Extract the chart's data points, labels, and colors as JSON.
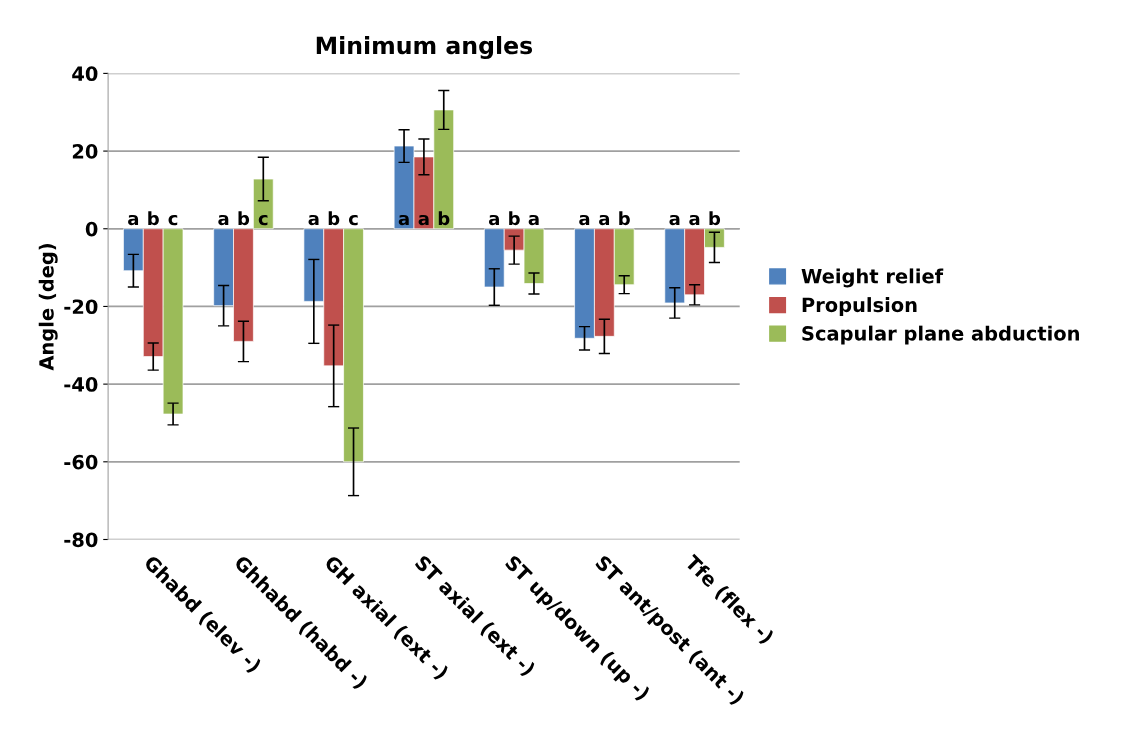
{
  "chart_data": {
    "type": "bar",
    "title": "Minimum angles",
    "ylabel": "Angle (deg)",
    "categories": [
      "Ghabd (elev -)",
      "Ghhabd (habd -)",
      "GH axial (ext -)",
      "ST axial (ext -)",
      "ST up/down (up -)",
      "ST ant/post (ant -)",
      "Tfe (flex -)"
    ],
    "series": [
      {
        "name": "Weight relief",
        "color": "#4f81bd",
        "values": [
          -10.8,
          -19.8,
          -18.7,
          21.3,
          -15,
          -28.2,
          -19.1
        ],
        "errors": [
          4.2,
          5.2,
          10.8,
          4.2,
          4.7,
          3,
          3.9
        ],
        "value_labels": [
          "a",
          "a",
          "a",
          "a",
          "a",
          "a",
          "a"
        ]
      },
      {
        "name": "Propulsion",
        "color": "#c0504d",
        "values": [
          -32.9,
          -29,
          -35.3,
          18.5,
          -5.5,
          -27.7,
          -17
        ],
        "errors": [
          3.5,
          5.2,
          10.5,
          4.6,
          3.6,
          4.4,
          2.6
        ],
        "value_labels": [
          "b",
          "b",
          "b",
          "a",
          "b",
          "a",
          "a"
        ]
      },
      {
        "name": "Scapular plane abduction",
        "color": "#9bbb59",
        "values": [
          -47.7,
          12.8,
          -60,
          30.6,
          -14.1,
          -14.4,
          -4.8
        ],
        "errors": [
          2.8,
          5.6,
          8.7,
          5,
          2.7,
          2.3,
          3.9
        ],
        "value_labels": [
          "c",
          "c",
          "c",
          "b",
          "a",
          "b",
          "b"
        ]
      }
    ],
    "ylim": [
      -80,
      40
    ],
    "yticks": [
      -80,
      -60,
      -40,
      -20,
      0,
      20,
      40
    ],
    "grid": "y",
    "legend": "right"
  }
}
